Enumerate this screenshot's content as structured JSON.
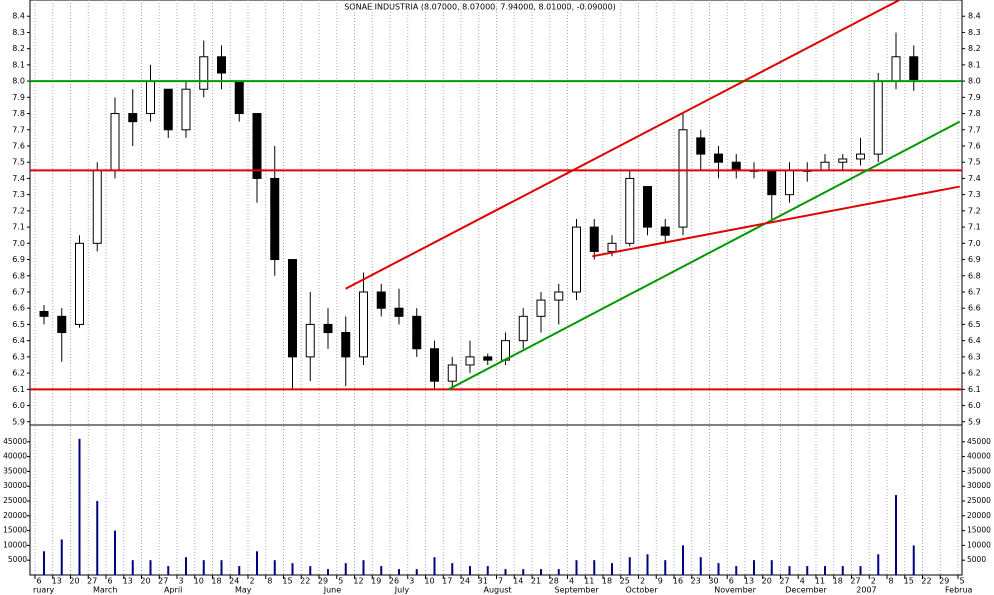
{
  "chart_data": {
    "type": "candlestick",
    "title": "SONAE INDUSTRIA (8.07000, 8.07000, 7.94000, 8.01000, -0.09000)",
    "categories": [
      "6",
      "13",
      "20",
      "27",
      "6",
      "13",
      "20",
      "27",
      "3",
      "10",
      "18",
      "24",
      "2",
      "8",
      "15",
      "22",
      "29",
      "5",
      "12",
      "19",
      "26",
      "3",
      "10",
      "17",
      "24",
      "31",
      "7",
      "14",
      "21",
      "28",
      "4",
      "11",
      "18",
      "25",
      "2",
      "9",
      "16",
      "23",
      "30",
      "6",
      "13",
      "20",
      "27",
      "4",
      "11",
      "18",
      "27",
      "2",
      "8",
      "15",
      "22",
      "29",
      "5"
    ],
    "months": [
      "ruary",
      "March",
      "April",
      "May",
      "June",
      "July",
      "August",
      "September",
      "October",
      "November",
      "December",
      "2007",
      "Februa"
    ],
    "open": [
      6.58,
      6.55,
      6.5,
      7.0,
      7.45,
      7.8,
      7.8,
      7.95,
      7.7,
      7.95,
      8.15,
      8.0,
      7.8,
      7.4,
      6.9,
      6.3,
      6.5,
      6.45,
      6.3,
      6.7,
      6.6,
      6.55,
      6.35,
      6.15,
      6.25,
      6.3,
      6.28,
      6.4,
      6.55,
      6.65,
      6.7,
      7.1,
      6.95,
      7.0,
      7.35,
      7.1,
      7.1,
      7.65,
      7.55,
      7.5,
      7.45,
      7.45,
      7.3,
      7.45,
      7.45,
      7.5,
      7.52,
      7.55,
      8.0,
      8.15,
      null,
      null,
      null
    ],
    "high": [
      6.62,
      6.6,
      7.05,
      7.5,
      7.9,
      7.95,
      8.1,
      7.95,
      8.0,
      8.25,
      8.22,
      8.0,
      7.8,
      7.6,
      6.9,
      6.7,
      6.6,
      6.55,
      6.82,
      6.75,
      6.72,
      6.6,
      6.4,
      6.3,
      6.4,
      6.32,
      6.45,
      6.6,
      6.7,
      6.75,
      7.15,
      7.15,
      7.05,
      7.45,
      7.35,
      7.15,
      7.8,
      7.7,
      7.6,
      7.55,
      7.5,
      7.45,
      7.5,
      7.5,
      7.55,
      7.55,
      7.65,
      8.05,
      8.3,
      8.22,
      null,
      null,
      null
    ],
    "low": [
      6.5,
      6.27,
      6.48,
      6.95,
      7.4,
      7.6,
      7.75,
      7.65,
      7.65,
      7.9,
      7.95,
      7.75,
      7.25,
      6.8,
      6.1,
      6.15,
      6.35,
      6.12,
      6.25,
      6.55,
      6.5,
      6.3,
      6.1,
      6.1,
      6.2,
      6.25,
      6.25,
      6.35,
      6.45,
      6.5,
      6.65,
      6.9,
      6.92,
      6.98,
      7.05,
      7.0,
      7.05,
      7.45,
      7.4,
      7.4,
      7.4,
      7.15,
      7.25,
      7.38,
      7.45,
      7.45,
      7.48,
      7.5,
      7.95,
      7.94,
      null,
      null,
      null
    ],
    "close": [
      6.55,
      6.45,
      7.0,
      7.45,
      7.8,
      7.75,
      8.0,
      7.7,
      7.95,
      8.15,
      8.05,
      7.8,
      7.4,
      6.9,
      6.3,
      6.5,
      6.45,
      6.3,
      6.7,
      6.6,
      6.55,
      6.35,
      6.15,
      6.25,
      6.3,
      6.28,
      6.4,
      6.55,
      6.65,
      6.7,
      7.1,
      6.95,
      7.0,
      7.4,
      7.1,
      7.05,
      7.7,
      7.55,
      7.5,
      7.45,
      7.45,
      7.3,
      7.45,
      7.45,
      7.5,
      7.52,
      7.55,
      8.0,
      8.15,
      8.01,
      null,
      null,
      null
    ],
    "volume": [
      8000,
      12000,
      46000,
      25000,
      15000,
      5000,
      5000,
      3000,
      6000,
      5000,
      5000,
      3000,
      8000,
      5000,
      4000,
      3000,
      2000,
      4000,
      5000,
      3000,
      2000,
      2000,
      6000,
      4000,
      3000,
      3000,
      2000,
      2000,
      2000,
      2000,
      5000,
      5000,
      4000,
      6000,
      7000,
      5000,
      10000,
      6000,
      4000,
      3000,
      5000,
      5000,
      3000,
      3000,
      3000,
      3000,
      3000,
      7000,
      27000,
      10000,
      null,
      null,
      null
    ],
    "volume_color": "#000080",
    "ylim": [
      5.88,
      8.5
    ],
    "yticks": [
      5.9,
      {
        "value": 6,
        "label": "6.0"
      },
      6.1,
      6.2,
      6.3,
      6.4,
      6.5,
      6.6,
      6.7,
      6.8,
      6.9,
      {
        "value": 7,
        "label": "7.0"
      },
      7.1,
      7.2,
      7.3,
      7.4,
      7.5,
      7.6,
      7.7,
      7.8,
      7.9,
      {
        "value": 8,
        "label": "8.0"
      },
      8.1,
      8.2,
      8.3,
      8.4
    ],
    "y2lim": [
      0,
      50000
    ],
    "y2ticks": [
      5000,
      10000,
      15000,
      20000,
      25000,
      30000,
      35000,
      40000,
      45000
    ],
    "levels": [
      {
        "value": 8.0,
        "color": "#009900"
      },
      {
        "value": 7.45,
        "color": "#e00000"
      },
      {
        "value": 6.1,
        "color": "#e00000"
      }
    ],
    "trend_lines": [
      {
        "color": "#e00000",
        "x": [
          17.5,
          48.7
        ],
        "y": [
          6.72,
          8.5
        ]
      },
      {
        "color": "#009900",
        "x": [
          23.3,
          52.1
        ],
        "y": [
          6.1,
          7.75
        ]
      },
      {
        "color": "#e00000",
        "x": [
          31.4,
          52.1
        ],
        "y": [
          6.92,
          7.35
        ]
      }
    ],
    "grid": true
  }
}
